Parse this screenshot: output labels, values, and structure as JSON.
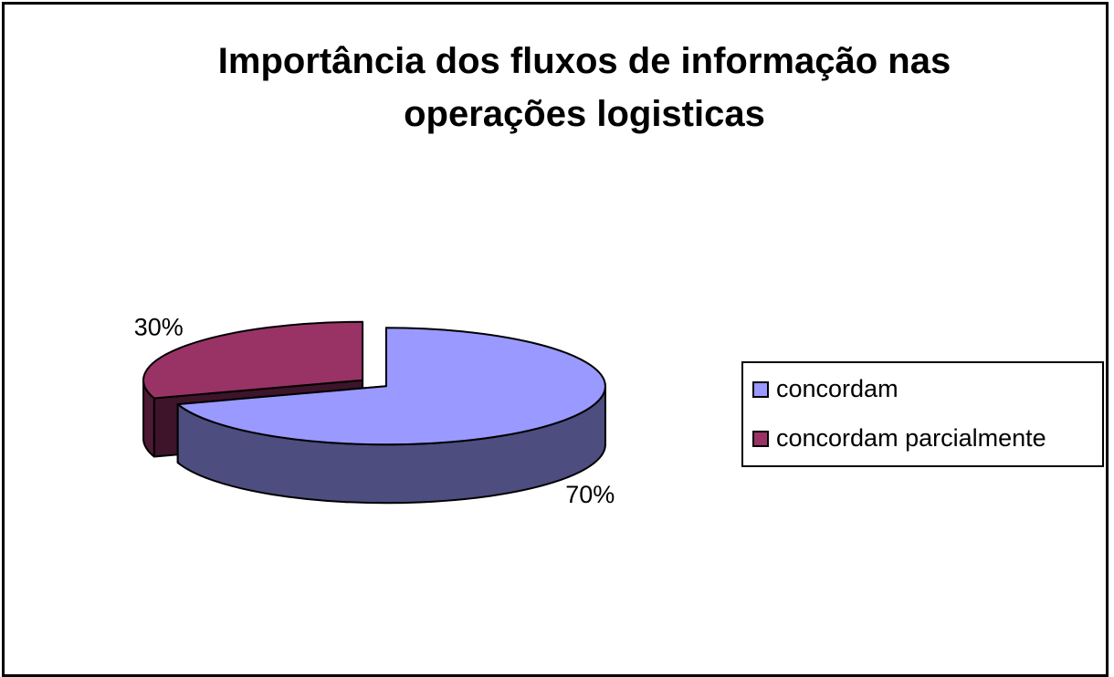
{
  "chart_data": {
    "type": "pie",
    "title": "Importância dos fluxos de informação nas operações logisticas",
    "categories": [
      "concordam",
      "concordam parcialmente"
    ],
    "values": [
      70,
      30
    ],
    "value_labels": [
      "70%",
      "30%"
    ],
    "colors": [
      "#9999ff",
      "#993366"
    ],
    "legend": "right"
  }
}
